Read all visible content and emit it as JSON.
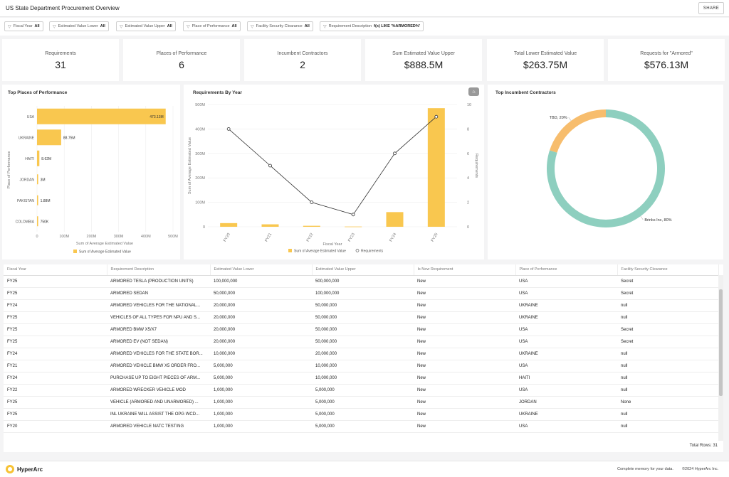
{
  "header": {
    "title": "US State Department Procurement Overview",
    "share_label": "SHARE"
  },
  "filters": [
    {
      "label": "Fiscal Year",
      "value": "All"
    },
    {
      "label": "Estimated Value Lower",
      "value": "All"
    },
    {
      "label": "Estimated Value Upper",
      "value": "All"
    },
    {
      "label": "Place of Performance",
      "value": "All"
    },
    {
      "label": "Facility Security Clearance",
      "value": "All"
    },
    {
      "label": "Requirement Description",
      "value": "f(x) LIKE '%ARMORED%'"
    }
  ],
  "kpis": [
    {
      "label": "Requirements",
      "value": "31"
    },
    {
      "label": "Places of Performance",
      "value": "6"
    },
    {
      "label": "Incumbent Contractors",
      "value": "2"
    },
    {
      "label": "Sum Estimated Value Upper",
      "value": "$888.5M"
    },
    {
      "label": "Total Lower Estimated Value",
      "value": "$263.75M"
    },
    {
      "label": "Requests for \"Armored\"",
      "value": "$576.13M"
    }
  ],
  "chart_data": [
    {
      "type": "bar",
      "title": "Top Places of Performance",
      "orientation": "horizontal",
      "categories": [
        "USA",
        "UKRAINE",
        "HAITI",
        "JORDAN",
        "PAKISTAN",
        "COLOMBIA"
      ],
      "values": [
        473.13,
        88.75,
        8.62,
        3,
        1.88,
        0.75
      ],
      "data_labels": [
        "473.13M",
        "88.75M",
        "8.62M",
        "3M",
        "1.88M",
        "750K"
      ],
      "xlabel": "Sum of Average Estimated Value",
      "ylabel": "Place of Performance",
      "x_ticks": [
        "0",
        "100M",
        "200M",
        "300M",
        "400M",
        "500M"
      ],
      "xlim": [
        0,
        500
      ],
      "legend": [
        "Sum of Average Estimated Value"
      ],
      "color": "#f9c74f"
    },
    {
      "type": "bar",
      "title": "Requirements By Year",
      "categories": [
        "FY20",
        "FY21",
        "FY22",
        "FY23",
        "FY24",
        "FY25"
      ],
      "series": [
        {
          "name": "Sum of Average Estimated Value",
          "type": "bar",
          "axis": "left",
          "values": [
            15,
            10,
            4,
            1,
            60,
            485
          ]
        },
        {
          "name": "Requirements",
          "type": "line",
          "axis": "right",
          "values": [
            8,
            5,
            2,
            1,
            6,
            9
          ]
        }
      ],
      "xlabel": "Fiscal Year",
      "ylabel": "Sum of Average Estimated Value",
      "y2label": "Requirements",
      "y_ticks": [
        "0",
        "100M",
        "200M",
        "300M",
        "400M",
        "500M"
      ],
      "y2_ticks": [
        "0",
        "2",
        "4",
        "6",
        "8",
        "10"
      ],
      "ylim": [
        0,
        500
      ],
      "y2lim": [
        0,
        10
      ],
      "legend": [
        "Sum of Average Estimated Value",
        "Requirements"
      ],
      "colors": {
        "bar": "#f9c74f",
        "line": "#333333"
      }
    },
    {
      "type": "pie",
      "title": "Top Incumbent Contractors",
      "donut": true,
      "slices": [
        {
          "label": "Brinks Inc, 80%",
          "value": 80,
          "color": "#8ecfbf"
        },
        {
          "label": "TBD, 20%",
          "value": 20,
          "color": "#f7bd6d"
        }
      ]
    }
  ],
  "table": {
    "columns": [
      "Fiscal Year",
      "Requirement Description",
      "Estimated Value Lower",
      "Estimated Value Upper",
      "Is New Requirement",
      "Place of Performance",
      "Facility Security Clearance"
    ],
    "rows": [
      [
        "FY25",
        "ARMORED TESLA (PRODUCTION UNITS)",
        "100,000,000",
        "500,000,000",
        "New",
        "USA",
        "Secret"
      ],
      [
        "FY25",
        "ARMORED SEDAN",
        "50,000,000",
        "100,000,000",
        "New",
        "USA",
        "Secret"
      ],
      [
        "FY24",
        "ARMORED VEHICLES FOR THE NATIONAL...",
        "20,000,000",
        "50,000,000",
        "New",
        "UKRAINE",
        "null"
      ],
      [
        "FY25",
        "VEHICLES OF ALL TYPES FOR NPU AND S...",
        "20,000,000",
        "50,000,000",
        "New",
        "UKRAINE",
        "null"
      ],
      [
        "FY25",
        "ARMORED BMW X5/X7",
        "20,000,000",
        "50,000,000",
        "New",
        "USA",
        "Secret"
      ],
      [
        "FY25",
        "ARMORED EV (NOT SEDAN)",
        "20,000,000",
        "50,000,000",
        "New",
        "USA",
        "Secret"
      ],
      [
        "FY24",
        "ARMORED VEHICLES FOR THE STATE BOR...",
        "10,000,000",
        "20,000,000",
        "New",
        "UKRAINE",
        "null"
      ],
      [
        "FY21",
        "ARMORED VEHICLE BMW X5 ORDER FRO...",
        "5,000,000",
        "10,000,000",
        "New",
        "USA",
        "null"
      ],
      [
        "FY24",
        "PURCHASE UP TO EIGHT PIECES OF ARM...",
        "5,000,000",
        "10,000,000",
        "New",
        "HAITI",
        "null"
      ],
      [
        "FY22",
        "ARMORED WRECKER VEHICLE MOD",
        "1,000,000",
        "5,000,000",
        "New",
        "USA",
        "null"
      ],
      [
        "FY25",
        "VEHICLE (ARMORED AND UNARMORED) ...",
        "1,000,000",
        "5,000,000",
        "New",
        "JORDAN",
        "None"
      ],
      [
        "FY25",
        "INL UKRAINE WILL ASSIST THE OPG WCD...",
        "1,000,000",
        "5,000,000",
        "New",
        "UKRAINE",
        "null"
      ],
      [
        "FY20",
        "ARMORED VEHICLE NATC TESTING",
        "1,000,000",
        "5,000,000",
        "New",
        "USA",
        "null"
      ]
    ],
    "total_rows": "Total Rows: 31"
  },
  "footer": {
    "brand": "HyperArc",
    "tagline": "Complete memory for your data.",
    "copyright": "©2024 HyperArc Inc."
  }
}
